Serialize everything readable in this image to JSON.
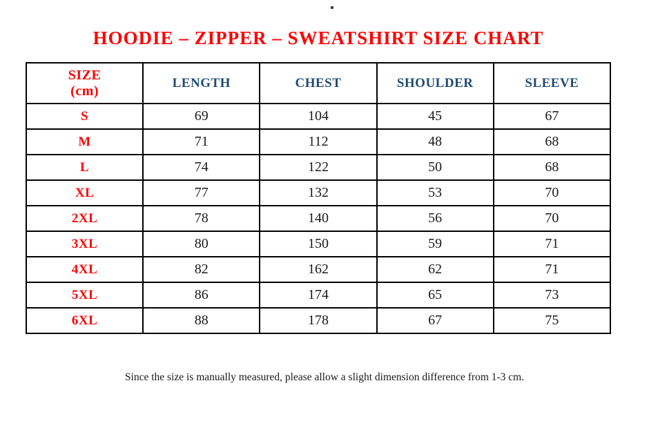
{
  "artifact_dot": ".",
  "title": "HOODIE – ZIPPER – SWEATSHIRT SIZE CHART",
  "footnote": "Since the size is manually measured, please allow a slight dimension difference from 1-3 cm.",
  "colors": {
    "title_red": "#FD0202",
    "size_red": "#FB0404",
    "header_blue": "#1F4B73",
    "text_black": "#1A1A1A",
    "border_black": "#000000",
    "page_bg": "#FFFFFF"
  },
  "chart_data": {
    "type": "table",
    "title": "HOODIE – ZIPPER – SWEATSHIRT SIZE CHART",
    "unit": "cm",
    "header": {
      "size_line1": "SIZE",
      "size_line2": "(cm)",
      "measures": [
        "LENGTH",
        "CHEST",
        "SHOULDER",
        "SLEEVE"
      ]
    },
    "rows": [
      {
        "size": "S",
        "values": [
          69,
          104,
          45,
          67
        ]
      },
      {
        "size": "M",
        "values": [
          71,
          112,
          48,
          68
        ]
      },
      {
        "size": "L",
        "values": [
          74,
          122,
          50,
          68
        ]
      },
      {
        "size": "XL",
        "values": [
          77,
          132,
          53,
          70
        ]
      },
      {
        "size": "2XL",
        "values": [
          78,
          140,
          56,
          70
        ]
      },
      {
        "size": "3XL",
        "values": [
          80,
          150,
          59,
          71
        ]
      },
      {
        "size": "4XL",
        "values": [
          82,
          162,
          62,
          71
        ]
      },
      {
        "size": "5XL",
        "values": [
          86,
          174,
          65,
          73
        ]
      },
      {
        "size": "6XL",
        "values": [
          88,
          178,
          67,
          75
        ]
      }
    ],
    "footnote": "Since the size is manually measured, please allow a slight dimension difference from 1-3 cm."
  }
}
